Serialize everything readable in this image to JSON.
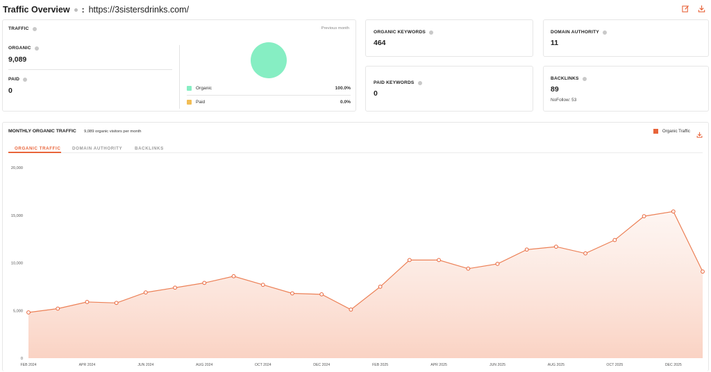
{
  "header": {
    "title": "Traffic Overview",
    "separator": ":",
    "url": "https://3sistersdrinks.com/"
  },
  "traffic": {
    "label": "TRAFFIC",
    "period": "Previous month",
    "organic_label": "ORGANIC",
    "organic_value": "9,089",
    "paid_label": "PAID",
    "paid_value": "0",
    "legend": [
      {
        "name": "Organic",
        "value": "100.0%",
        "color": "#86eec3"
      },
      {
        "name": "Paid",
        "value": "0.0%",
        "color": "#f2bd55"
      }
    ]
  },
  "organic_keywords": {
    "label": "ORGANIC KEYWORDS",
    "value": "464"
  },
  "paid_keywords": {
    "label": "PAID KEYWORDS",
    "value": "0"
  },
  "domain_authority": {
    "label": "DOMAIN AUTHORITY",
    "value": "11"
  },
  "backlinks": {
    "label": "BACKLINKS",
    "value": "89",
    "nofollow": "NoFollow: 53"
  },
  "monthly": {
    "title": "MONTHLY ORGANIC TRAFFIC",
    "subtitle": "9,089 organic visitors per month",
    "legend_label": "Organic Traffic",
    "tabs": [
      "ORGANIC TRAFFIC",
      "DOMAIN AUTHORITY",
      "BACKLINKS"
    ]
  },
  "colors": {
    "accent": "#e8643a",
    "organic": "#86eec3",
    "paid": "#f2bd55"
  },
  "chart_data": {
    "type": "area",
    "title": "",
    "xlabel": "",
    "ylabel": "",
    "ylim": [
      0,
      20000
    ],
    "yticks": [
      "0",
      "5,000",
      "10,000",
      "15,000",
      "20,000"
    ],
    "ytick_values": [
      0,
      5000,
      10000,
      15000,
      20000
    ],
    "xtick_labels": [
      "FEB 2024",
      "APR 2024",
      "JUN 2024",
      "AUG 2024",
      "OCT 2024",
      "DEC 2024",
      "FEB 2025",
      "APR 2025",
      "JUN 2025",
      "AUG 2025",
      "OCT 2025",
      "DEC 2025"
    ],
    "xtick_index": [
      0,
      2,
      4,
      6,
      8,
      10,
      12,
      14,
      16,
      18,
      20,
      22
    ],
    "categories": [
      "Feb 2024",
      "Mar 2024",
      "Apr 2024",
      "May 2024",
      "Jun 2024",
      "Jul 2024",
      "Aug 2024",
      "Sep 2024",
      "Oct 2024",
      "Nov 2024",
      "Dec 2024",
      "Jan 2025",
      "Feb 2025",
      "Mar 2025",
      "Apr 2025",
      "May 2025",
      "Jun 2025",
      "Jul 2025",
      "Aug 2025",
      "Sep 2025",
      "Oct 2025",
      "Nov 2025",
      "Dec 2025",
      "Jan 2026"
    ],
    "series": [
      {
        "name": "Organic Traffic",
        "values": [
          4800,
          5200,
          5900,
          5800,
          6900,
          7400,
          7900,
          8600,
          7700,
          6800,
          6700,
          5100,
          7500,
          10300,
          10300,
          9400,
          9900,
          11400,
          11700,
          11000,
          12400,
          14900,
          15400,
          9089
        ]
      }
    ],
    "grid": false,
    "legend": "top-right"
  }
}
